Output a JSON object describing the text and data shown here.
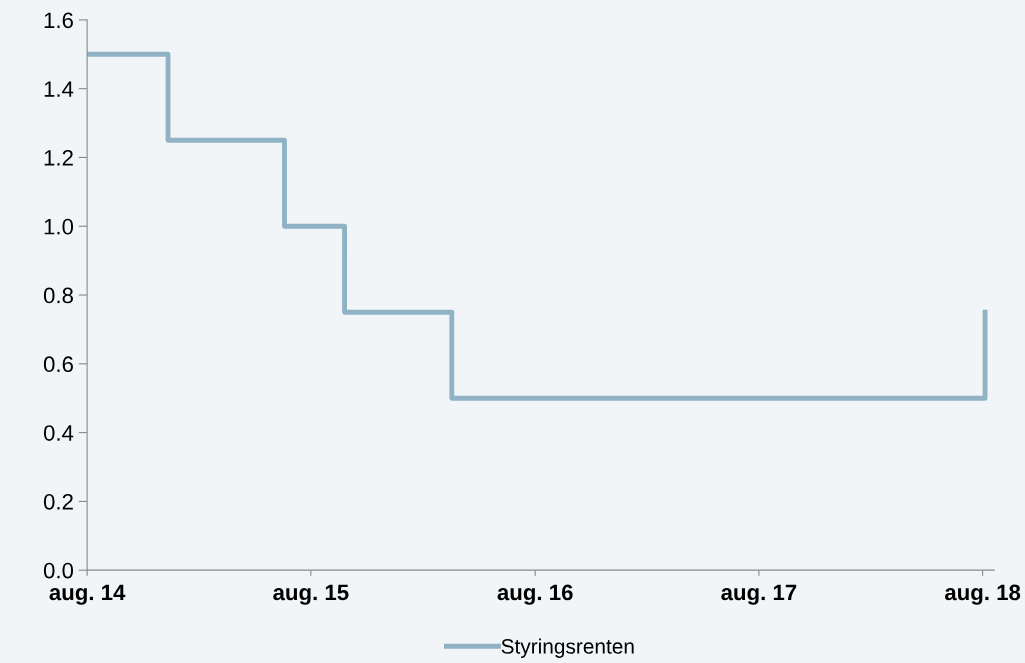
{
  "chart_data": {
    "type": "step",
    "x": [
      "2014-08-01",
      "2014-12-11",
      "2015-06-19",
      "2015-09-25",
      "2016-03-18",
      "2018-08-05"
    ],
    "series": [
      {
        "name": "Styringsrenten",
        "color": "#8fb3c4",
        "values": [
          1.5,
          1.25,
          1.0,
          0.75,
          0.5,
          0.75
        ]
      }
    ],
    "xlim": [
      "2014-08-01",
      "2018-08-20"
    ],
    "xticks": [
      {
        "value": "2014-08-01",
        "label": "aug. 14"
      },
      {
        "value": "2015-08-01",
        "label": "aug. 15"
      },
      {
        "value": "2016-08-01",
        "label": "aug. 16"
      },
      {
        "value": "2017-08-01",
        "label": "aug. 17"
      },
      {
        "value": "2018-08-01",
        "label": "aug. 18"
      }
    ],
    "ylim": [
      0,
      1.6
    ],
    "yticks": [
      {
        "value": 0,
        "label": "0.0"
      },
      {
        "value": 0.2,
        "label": "0.2"
      },
      {
        "value": 0.4,
        "label": "0.4"
      },
      {
        "value": 0.6,
        "label": "0.6"
      },
      {
        "value": 0.8,
        "label": "0.8"
      },
      {
        "value": 1.0,
        "label": "1.0"
      },
      {
        "value": 1.2,
        "label": "1.2"
      },
      {
        "value": 1.4,
        "label": "1.4"
      },
      {
        "value": 1.6,
        "label": "1.6"
      }
    ],
    "grid": false,
    "legend": "bottom",
    "line_style": "solid",
    "marker": "none"
  }
}
